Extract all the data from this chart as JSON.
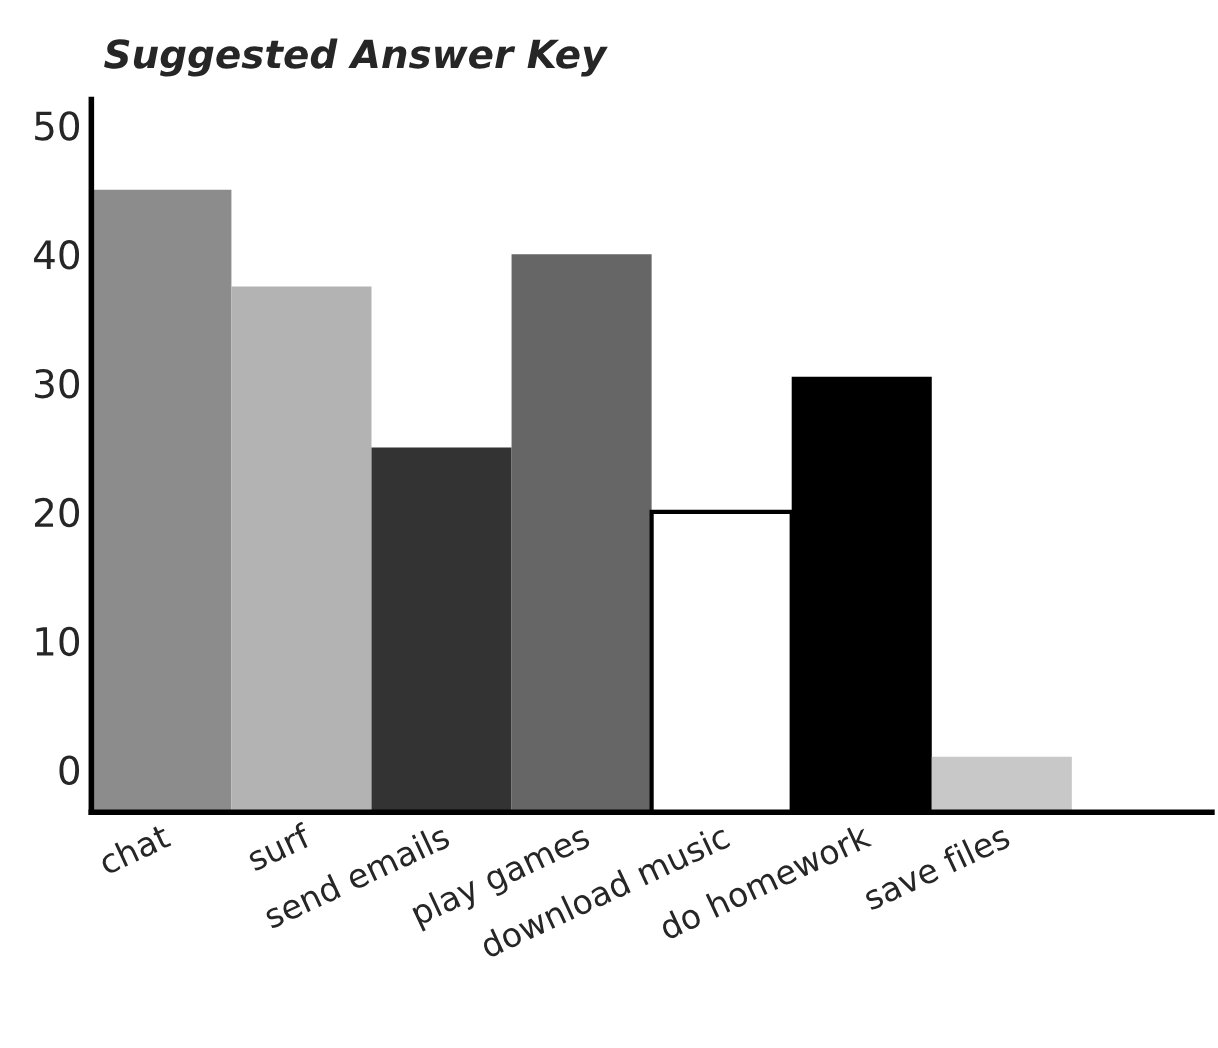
{
  "chart_data": {
    "type": "bar",
    "title": "Suggested Answer Key",
    "categories": [
      "chat",
      "surf",
      "send emails",
      "play games",
      "download music",
      "do homework",
      "save files"
    ],
    "base": [
      -3.3,
      -3.3,
      -3.3,
      -3.3,
      -3.3,
      -3.3,
      -3.3
    ],
    "values": [
      48.3,
      40.8,
      28.3,
      43.3,
      23.3,
      33.8,
      4.3
    ],
    "colors": [
      "#8c8c8c",
      "#b3b3b3",
      "#333333",
      "#666666",
      "#ffffff",
      "#000000",
      "#c8c8c8"
    ],
    "ylim": [
      -3.3,
      52
    ],
    "yticks": [
      0,
      10,
      20,
      30,
      40,
      50
    ],
    "grid": false
  }
}
